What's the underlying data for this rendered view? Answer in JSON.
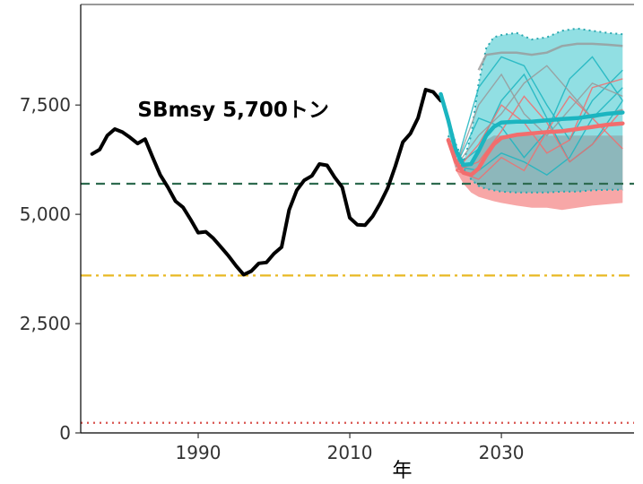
{
  "chart_data": {
    "type": "line",
    "title": "",
    "xlabel": "年",
    "ylabel": "",
    "xlim": [
      1974.5,
      2047.5
    ],
    "ylim": [
      0,
      9800
    ],
    "x_ticks": [
      1990,
      2010,
      2030
    ],
    "x_tick_labels": [
      "1990",
      "2010",
      "2030"
    ],
    "y_ticks": [
      0,
      2500,
      5000,
      7500
    ],
    "y_tick_labels": [
      "0",
      "2,500",
      "5,000",
      "7,500"
    ],
    "grid": false,
    "legend": "none",
    "annotation": {
      "text": "SBmsy 5,700トン",
      "x": 1982,
      "y": 7400
    },
    "colors": {
      "history": "#000000",
      "cyan": "#1bb5c0",
      "red": "#f26d6d",
      "cyan_band": "#36c4cc",
      "red_band": "#f48a8a",
      "band_edge": "#2aa8b0",
      "sbmsy_line": "#2e6b4f",
      "limit_line": "#e8b923",
      "ban_line": "#d9534f",
      "grey_line": "#999999"
    },
    "reference_lines": [
      {
        "name": "SBmsy",
        "y": 5700,
        "style": "dashed",
        "color_key": "sbmsy_line"
      },
      {
        "name": "SBlimit",
        "y": 3600,
        "style": "dashdot",
        "color_key": "limit_line"
      },
      {
        "name": "SBban",
        "y": 230,
        "style": "dotted",
        "color_key": "ban_line"
      }
    ],
    "series": [
      {
        "role": "history",
        "x": [
          1976,
          1977,
          1978,
          1979,
          1980,
          1981,
          1982,
          1983,
          1984,
          1985,
          1986,
          1987,
          1988,
          1989,
          1990,
          1991,
          1992,
          1993,
          1994,
          1995,
          1996,
          1997,
          1998,
          1999,
          2000,
          2001,
          2002,
          2003,
          2004,
          2005,
          2006,
          2007,
          2008,
          2009,
          2010,
          2011,
          2012,
          2013,
          2014,
          2015,
          2016,
          2017,
          2018,
          2019,
          2020,
          2021,
          2022
        ],
        "y": [
          6380,
          6480,
          6800,
          6950,
          6880,
          6760,
          6620,
          6720,
          6300,
          5900,
          5620,
          5300,
          5160,
          4880,
          4580,
          4600,
          4450,
          4250,
          4050,
          3820,
          3620,
          3700,
          3880,
          3900,
          4100,
          4250,
          5100,
          5550,
          5780,
          5880,
          6150,
          6120,
          5850,
          5620,
          4920,
          4760,
          4750,
          4950,
          5250,
          5600,
          6100,
          6650,
          6850,
          7200,
          7850,
          7800,
          7600
        ]
      },
      {
        "role": "projection-mean-cyan",
        "x": [
          2022,
          2023,
          2024,
          2025,
          2026,
          2027,
          2028,
          2029,
          2030,
          2032,
          2034,
          2036,
          2038,
          2040,
          2042,
          2044,
          2046
        ],
        "y": [
          7750,
          7150,
          6450,
          6130,
          6150,
          6450,
          6800,
          7000,
          7100,
          7120,
          7120,
          7150,
          7180,
          7200,
          7250,
          7300,
          7330
        ]
      },
      {
        "role": "projection-mean-red",
        "x": [
          2023,
          2024,
          2025,
          2026,
          2027,
          2028,
          2029,
          2030,
          2032,
          2034,
          2036,
          2038,
          2040,
          2042,
          2044,
          2046
        ],
        "y": [
          6700,
          6200,
          5950,
          5900,
          6050,
          6350,
          6600,
          6750,
          6820,
          6850,
          6880,
          6900,
          6950,
          7000,
          7050,
          7080
        ]
      }
    ],
    "bands": [
      {
        "role": "cyan-range",
        "x": [
          2023,
          2024,
          2025,
          2026,
          2027,
          2028,
          2029,
          2030,
          2032,
          2034,
          2036,
          2038,
          2040,
          2042,
          2044,
          2046
        ],
        "lower": [
          6800,
          6300,
          6050,
          5800,
          5650,
          5580,
          5550,
          5520,
          5500,
          5500,
          5500,
          5520,
          5520,
          5550,
          5560,
          5560
        ],
        "upper": [
          7200,
          6600,
          6200,
          6800,
          8000,
          8800,
          9050,
          9100,
          9150,
          9000,
          9050,
          9200,
          9250,
          9200,
          9150,
          9120
        ]
      },
      {
        "role": "red-range",
        "x": [
          2023,
          2024,
          2025,
          2026,
          2027,
          2028,
          2029,
          2030,
          2032,
          2034,
          2036,
          2038,
          2040,
          2042,
          2044,
          2046
        ],
        "lower": [
          6600,
          6000,
          5700,
          5500,
          5400,
          5350,
          5300,
          5260,
          5200,
          5150,
          5150,
          5100,
          5150,
          5200,
          5230,
          5260
        ],
        "upper": [
          6800,
          6300,
          6100,
          6200,
          6500,
          6700,
          6800,
          6800,
          6800,
          6800,
          6800,
          6800,
          6800,
          6800,
          6800,
          6800
        ]
      }
    ],
    "grey_envelope": {
      "x": [
        2027,
        2028,
        2030,
        2032,
        2034,
        2036,
        2038,
        2040,
        2042,
        2044,
        2046
      ],
      "y": [
        8300,
        8650,
        8700,
        8700,
        8650,
        8700,
        8850,
        8900,
        8900,
        8880,
        8850
      ]
    },
    "sample_paths": [
      {
        "color_key": "cyan",
        "x": [
          2024,
          2027,
          2030,
          2033,
          2036,
          2039,
          2042,
          2046
        ],
        "y": [
          6100,
          7900,
          8600,
          8400,
          7500,
          6700,
          7600,
          8300
        ]
      },
      {
        "color_key": "cyan",
        "x": [
          2024,
          2027,
          2030,
          2033,
          2036,
          2039,
          2042,
          2046
        ],
        "y": [
          6100,
          6500,
          7600,
          8200,
          7200,
          6200,
          6600,
          7600
        ]
      },
      {
        "color_key": "cyan",
        "x": [
          2024,
          2027,
          2030,
          2033,
          2036,
          2039,
          2042,
          2046
        ],
        "y": [
          6100,
          6000,
          6400,
          6200,
          5900,
          6300,
          7200,
          7900
        ]
      },
      {
        "color_key": "cyan",
        "x": [
          2024,
          2027,
          2030,
          2033,
          2036,
          2039,
          2042,
          2046
        ],
        "y": [
          6100,
          7200,
          7000,
          6300,
          6900,
          8100,
          8600,
          7600
        ]
      },
      {
        "color_key": "red",
        "x": [
          2024,
          2027,
          2030,
          2033,
          2036,
          2039,
          2042,
          2046
        ],
        "y": [
          6000,
          6200,
          6900,
          7700,
          7100,
          6200,
          6600,
          7400
        ]
      },
      {
        "color_key": "red",
        "x": [
          2024,
          2027,
          2030,
          2033,
          2036,
          2039,
          2042,
          2046
        ],
        "y": [
          6000,
          5800,
          6300,
          6000,
          6900,
          7700,
          7200,
          6500
        ]
      },
      {
        "color_key": "red",
        "x": [
          2024,
          2027,
          2030,
          2033,
          2036,
          2039,
          2042,
          2046
        ],
        "y": [
          6000,
          6600,
          7500,
          7100,
          6400,
          6700,
          7900,
          8100
        ]
      },
      {
        "color_key": "grey_line",
        "x": [
          2024,
          2027,
          2030,
          2033,
          2036,
          2039,
          2042,
          2046
        ],
        "y": [
          6100,
          7500,
          8200,
          7300,
          6800,
          7400,
          8000,
          7700
        ]
      },
      {
        "color_key": "grey_line",
        "x": [
          2024,
          2027,
          2030,
          2033,
          2036,
          2039,
          2042,
          2046
        ],
        "y": [
          6100,
          6800,
          7300,
          8000,
          8400,
          7800,
          7200,
          7400
        ]
      }
    ]
  }
}
